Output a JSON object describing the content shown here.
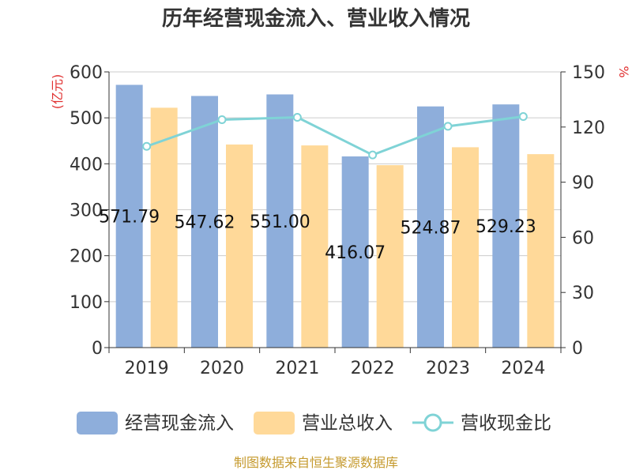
{
  "chart_data": {
    "type": "bar",
    "title": "历年经营现金流入、营业收入情况",
    "categories": [
      "2019",
      "2020",
      "2021",
      "2022",
      "2023",
      "2024"
    ],
    "left_axis": {
      "unit": "(亿元)",
      "ylim": [
        0,
        600
      ],
      "ticks": [
        "0",
        "100",
        "200",
        "300",
        "400",
        "500",
        "600"
      ]
    },
    "right_axis": {
      "unit": "%",
      "ylim": [
        0,
        150
      ],
      "ticks": [
        "0",
        "30",
        "60",
        "90",
        "120",
        "150"
      ]
    },
    "series": [
      {
        "name": "经营现金流入",
        "kind": "bar",
        "axis": "left",
        "color": "#8eaedb",
        "values": [
          571.79,
          547.62,
          551.0,
          416.07,
          524.87,
          529.23
        ],
        "labels": [
          "571.79",
          "547.62",
          "551.00",
          "416.07",
          "524.87",
          "529.23"
        ]
      },
      {
        "name": "营业总收入",
        "kind": "bar",
        "axis": "left",
        "color": "#ffd999",
        "values": [
          522,
          442,
          440,
          397,
          436,
          421
        ]
      },
      {
        "name": "营收现金比",
        "kind": "line",
        "axis": "right",
        "color": "#7fd3d6",
        "values": [
          109.5,
          124,
          125.3,
          104.8,
          120.4,
          125.7
        ]
      }
    ],
    "grid": true,
    "legend_position": "bottom"
  },
  "source_text": "制图数据来自恒生聚源数据库"
}
